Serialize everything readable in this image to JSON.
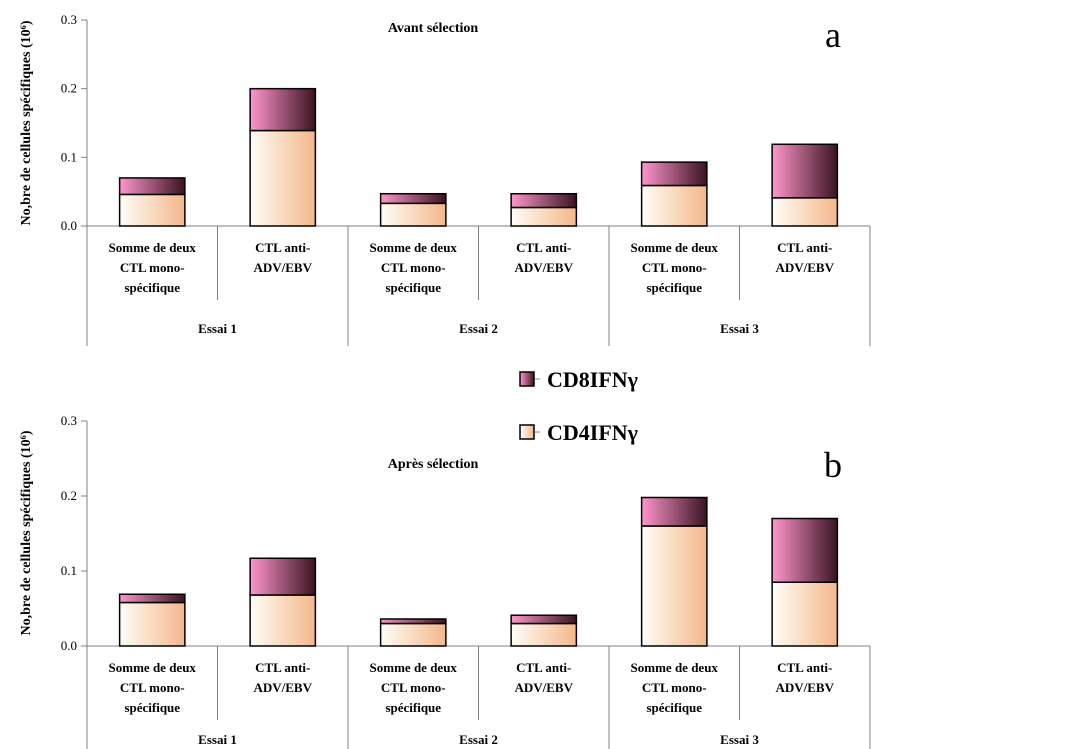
{
  "colors": {
    "cd4_light": "#fffdf8",
    "cd4_dark": "#f3b78a",
    "cd8_light": "#ff96cc",
    "cd8_dark": "#3a1320",
    "axis": "#808080",
    "bar_border": "#000000"
  },
  "legend": {
    "cd8": "CD8IFNγ",
    "cd4": "CD4IFNγ"
  },
  "chart_data": [
    {
      "type": "bar",
      "stacked": true,
      "panel_letter": "a",
      "title": "Avant sélection",
      "ylabel": "No,bre de cellules spécifiques (10⁶)",
      "ylim": [
        0,
        0.3
      ],
      "yticks": [
        "0.0",
        "0.1",
        "0.2",
        "0.3"
      ],
      "categories": [
        "Somme de deux CTL mono-spécifique",
        "CTL anti-ADV/EBV",
        "Somme de deux CTL mono-spécifique",
        "CTL anti-ADV/EBV",
        "Somme de deux CTL mono-spécifique",
        "CTL anti-ADV/EBV"
      ],
      "category_lines": [
        [
          "Somme de deux",
          "CTL mono-",
          "spécifique"
        ],
        [
          "CTL anti-",
          "ADV/EBV"
        ],
        [
          "Somme de deux",
          "CTL mono-",
          "spécifique"
        ],
        [
          "CTL anti-",
          "ADV/EBV"
        ],
        [
          "Somme de deux",
          "CTL mono-",
          "spécifique"
        ],
        [
          "CTL anti-",
          "ADV/EBV"
        ]
      ],
      "groups": [
        "Essai  1",
        "Essai  2",
        "Essai  3"
      ],
      "series": [
        {
          "name": "CD4IFNγ",
          "values": [
            0.046,
            0.139,
            0.033,
            0.027,
            0.059,
            0.041
          ]
        },
        {
          "name": "CD8IFNγ",
          "values": [
            0.024,
            0.061,
            0.014,
            0.02,
            0.034,
            0.078
          ]
        }
      ]
    },
    {
      "type": "bar",
      "stacked": true,
      "panel_letter": "b",
      "title": "Après sélection",
      "ylabel": "No,bre de cellules spécifiques (10⁶)",
      "ylim": [
        0,
        0.3
      ],
      "yticks": [
        "0.0",
        "0.1",
        "0.2",
        "0.3"
      ],
      "categories": [
        "Somme de deux CTL mono-spécifique",
        "CTL anti-ADV/EBV",
        "Somme de deux CTL mono-spécifique",
        "CTL anti-ADV/EBV",
        "Somme de deux CTL mono-spécifique",
        "CTL anti-ADV/EBV"
      ],
      "category_lines": [
        [
          "Somme de deux",
          "CTL mono-",
          "spécifique"
        ],
        [
          "CTL anti-",
          "ADV/EBV"
        ],
        [
          "Somme de deux",
          "CTL mono-",
          "spécifique"
        ],
        [
          "CTL anti-",
          "ADV/EBV"
        ],
        [
          "Somme de deux",
          "CTL mono-",
          "spécifique"
        ],
        [
          "CTL anti-",
          "ADV/EBV"
        ]
      ],
      "groups": [
        "Essai  1",
        "Essai  2",
        "Essai  3"
      ],
      "series": [
        {
          "name": "CD4IFNγ",
          "values": [
            0.058,
            0.068,
            0.03,
            0.03,
            0.16,
            0.085
          ]
        },
        {
          "name": "CD8IFNγ",
          "values": [
            0.011,
            0.049,
            0.006,
            0.011,
            0.038,
            0.085
          ]
        }
      ]
    }
  ]
}
